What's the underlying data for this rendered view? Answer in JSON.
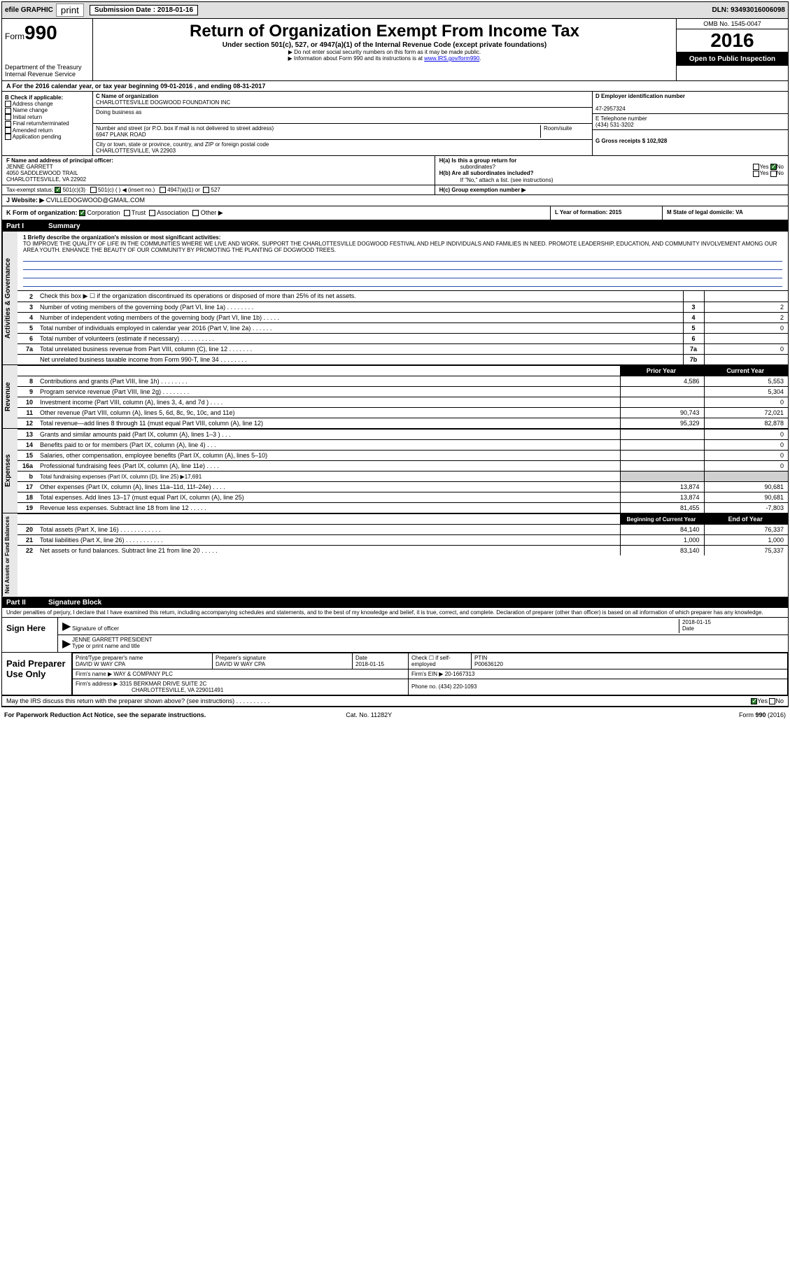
{
  "topbar": {
    "efile": "efile GRAPHIC",
    "print": "print",
    "sub_lbl": "Submission Date : 2018-01-16",
    "dln": "DLN: 93493016006098"
  },
  "header": {
    "form": "Form",
    "num": "990",
    "dept1": "Department of the Treasury",
    "dept2": "Internal Revenue Service",
    "title": "Return of Organization Exempt From Income Tax",
    "sub1": "Under section 501(c), 527, or 4947(a)(1) of the Internal Revenue Code (except private foundations)",
    "sub2": "▶ Do not enter social security numbers on this form as it may be made public.",
    "sub3": "▶ Information about Form 990 and its instructions is at ",
    "sub3link": "www.IRS.gov/form990",
    "omb": "OMB No. 1545-0047",
    "year": "2016",
    "open": "Open to Public Inspection"
  },
  "rowA": "A For the 2016 calendar year, or tax year beginning 09-01-2016   , and ending 08-31-2017",
  "colB": {
    "hdr": "B Check if applicable:",
    "items": [
      "Address change",
      "Name change",
      "Initial return",
      "Final return/terminated",
      "Amended return",
      "Application pending"
    ]
  },
  "colC": {
    "c_lbl": "C Name of organization",
    "c_val": "CHARLOTTESVILLE DOGWOOD FOUNDATION INC",
    "dba_lbl": "Doing business as",
    "addr_lbl": "Number and street (or P.O. box if mail is not delivered to street address)",
    "room_lbl": "Room/suite",
    "addr_val": "6947 PLANK ROAD",
    "city_lbl": "City or town, state or province, country, and ZIP or foreign postal code",
    "city_val": "CHARLOTTESVILLE, VA  22903"
  },
  "colDE": {
    "d_lbl": "D Employer identification number",
    "d_val": "47-2957324",
    "e_lbl": "E Telephone number",
    "e_val": "(434) 531-3202",
    "g_lbl": "G Gross receipts $ 102,928"
  },
  "fgh": {
    "f_lbl": "F  Name and address of principal officer:",
    "f_name": "JENNE GARRETT",
    "f_addr1": "4050 SADDLEWOOD TRAIL",
    "f_addr2": "CHARLOTTESVILLE, VA  22902",
    "ha_lbl": "H(a)  Is this a group return for",
    "ha_sub": "subordinates?",
    "hb_lbl": "H(b)  Are all subordinates included?",
    "hb_note": "If \"No,\" attach a list. (see instructions)",
    "hc_lbl": "H(c)  Group exemption number ▶",
    "yes": "Yes",
    "no": "No"
  },
  "status": {
    "lbl": "Tax-exempt status:",
    "o1": "501(c)(3)",
    "o2": "501(c) (  ) ◀ (insert no.)",
    "o3": "4947(a)(1) or",
    "o4": "527"
  },
  "website": {
    "lbl": "J  Website: ▶",
    "val": "CVILLEDOGWOOD@GMAIL.COM"
  },
  "klm": {
    "k_lbl": "K Form of organization:",
    "k_opts": [
      "Corporation",
      "Trust",
      "Association",
      "Other ▶"
    ],
    "l_lbl": "L Year of formation: 2015",
    "m_lbl": "M State of legal domicile: VA"
  },
  "part1": {
    "pn": "Part I",
    "title": "Summary"
  },
  "mission": {
    "lbl": "1  Briefly describe the organization's mission or most significant activities:",
    "text": "TO IMPROVE THE QUALITY OF LIFE IN THE COMMUNITIES WHERE WE LIVE AND WORK. SUPPORT THE CHARLOTTESVILLE DOGWOOD FESTIVAL AND HELP INDIVIDUALS AND FAMILIES IN NEED. PROMOTE LEADERSHIP, EDUCATION, AND COMMUNITY INVOLVEMENT AMONG OUR AREA YOUTH. ENHANCE THE BEAUTY OF OUR COMMUNITY BY PROMOTING THE PLANTING OF DOGWOOD TREES."
  },
  "gov_rows": [
    {
      "n": "2",
      "d": "Check this box ▶ ☐  if the organization discontinued its operations or disposed of more than 25% of its net assets.",
      "b": "",
      "v": ""
    },
    {
      "n": "3",
      "d": "Number of voting members of the governing body (Part VI, line 1a)   .   .   .   .   .   .   .   .",
      "b": "3",
      "v": "2"
    },
    {
      "n": "4",
      "d": "Number of independent voting members of the governing body (Part VI, line 1b)   .   .   .   .   .",
      "b": "4",
      "v": "2"
    },
    {
      "n": "5",
      "d": "Total number of individuals employed in calendar year 2016 (Part V, line 2a)   .   .   .   .   .   .",
      "b": "5",
      "v": "0"
    },
    {
      "n": "6",
      "d": "Total number of volunteers (estimate if necessary)   .   .   .   .   .   .   .   .   .   .",
      "b": "6",
      "v": ""
    },
    {
      "n": "7a",
      "d": "Total unrelated business revenue from Part VIII, column (C), line 12   .   .   .   .   .   .   .",
      "b": "7a",
      "v": "0"
    },
    {
      "n": "",
      "d": "Net unrelated business taxable income from Form 990-T, line 34   .   .   .   .   .   .   .   .",
      "b": "7b",
      "v": ""
    }
  ],
  "rev_hdr": {
    "prior": "Prior Year",
    "curr": "Current Year"
  },
  "rev_rows": [
    {
      "n": "8",
      "d": "Contributions and grants (Part VIII, line 1h)   .   .   .   .   .   .   .   .",
      "p": "4,586",
      "c": "5,553"
    },
    {
      "n": "9",
      "d": "Program service revenue (Part VIII, line 2g)   .   .   .   .   .   .   .   .",
      "p": "",
      "c": "5,304"
    },
    {
      "n": "10",
      "d": "Investment income (Part VIII, column (A), lines 3, 4, and 7d )   .   .   .   .",
      "p": "",
      "c": "0"
    },
    {
      "n": "11",
      "d": "Other revenue (Part VIII, column (A), lines 5, 6d, 8c, 9c, 10c, and 11e)",
      "p": "90,743",
      "c": "72,021"
    },
    {
      "n": "12",
      "d": "Total revenue—add lines 8 through 11 (must equal Part VIII, column (A), line 12)",
      "p": "95,329",
      "c": "82,878"
    }
  ],
  "exp_rows": [
    {
      "n": "13",
      "d": "Grants and similar amounts paid (Part IX, column (A), lines 1–3 )   .   .   .",
      "p": "",
      "c": "0"
    },
    {
      "n": "14",
      "d": "Benefits paid to or for members (Part IX, column (A), line 4)   .   .   .",
      "p": "",
      "c": "0"
    },
    {
      "n": "15",
      "d": "Salaries, other compensation, employee benefits (Part IX, column (A), lines 5–10)",
      "p": "",
      "c": "0"
    },
    {
      "n": "16a",
      "d": "Professional fundraising fees (Part IX, column (A), line 11e)   .   .   .   .",
      "p": "",
      "c": "0"
    },
    {
      "n": "b",
      "d": "Total fundraising expenses (Part IX, column (D), line 25) ▶17,691",
      "p": "shade",
      "c": "shade"
    },
    {
      "n": "17",
      "d": "Other expenses (Part IX, column (A), lines 11a–11d, 11f–24e)   .   .   .   .",
      "p": "13,874",
      "c": "90,681"
    },
    {
      "n": "18",
      "d": "Total expenses. Add lines 13–17 (must equal Part IX, column (A), line 25)",
      "p": "13,874",
      "c": "90,681"
    },
    {
      "n": "19",
      "d": "Revenue less expenses. Subtract line 18 from line 12   .   .   .   .   .",
      "p": "81,455",
      "c": "-7,803"
    }
  ],
  "na_hdr": {
    "beg": "Beginning of Current Year",
    "end": "End of Year"
  },
  "na_rows": [
    {
      "n": "20",
      "d": "Total assets (Part X, line 16)   .   .   .   .   .   .   .   .   .   .   .   .",
      "p": "84,140",
      "c": "76,337"
    },
    {
      "n": "21",
      "d": "Total liabilities (Part X, line 26)   .   .   .   .   .   .   .   .   .   .   .",
      "p": "1,000",
      "c": "1,000"
    },
    {
      "n": "22",
      "d": "Net assets or fund balances. Subtract line 21 from line 20   .   .   .   .   .",
      "p": "83,140",
      "c": "75,337"
    }
  ],
  "part2": {
    "pn": "Part II",
    "title": "Signature Block"
  },
  "perjury": "Under penalties of perjury, I declare that I have examined this return, including accompanying schedules and statements, and to the best of my knowledge and belief, it is true, correct, and complete. Declaration of preparer (other than officer) is based on all information of which preparer has any knowledge.",
  "sign": {
    "lbl": "Sign Here",
    "sig_of": "Signature of officer",
    "date": "2018-01-15",
    "date_lbl": "Date",
    "name": "JENNE GARRETT  PRESIDENT",
    "name_lbl": "Type or print name and title"
  },
  "prep": {
    "lbl": "Paid Preparer Use Only",
    "pt_lbl": "Print/Type preparer's name",
    "pt_val": "DAVID W WAY CPA",
    "ps_lbl": "Preparer's signature",
    "ps_val": "DAVID W WAY CPA",
    "d_lbl": "Date",
    "d_val": "2018-01-15",
    "se_lbl": "Check ☐ if self-employed",
    "ptin_lbl": "PTIN",
    "ptin_val": "P00636120",
    "fn_lbl": "Firm's name    ▶",
    "fn_val": "WAY & COMPANY PLC",
    "fe_lbl": "Firm's EIN ▶",
    "fe_val": "20-1667313",
    "fa_lbl": "Firm's address ▶",
    "fa_val": "3315 BERKMAR DRIVE SUITE 2C",
    "fa_val2": "CHARLOTTESVILLE, VA  229011491",
    "ph_lbl": "Phone no.",
    "ph_val": "(434) 220-1093"
  },
  "discuss": "May the IRS discuss this return with the preparer shown above? (see instructions)   .   .   .   .   .   .   .   .   .   .",
  "footer": {
    "l": "For Paperwork Reduction Act Notice, see the separate instructions.",
    "m": "Cat. No. 11282Y",
    "r": "Form 990 (2016)"
  },
  "side_labels": {
    "gov": "Activities & Governance",
    "rev": "Revenue",
    "exp": "Expenses",
    "na": "Net Assets or Fund Balances"
  }
}
